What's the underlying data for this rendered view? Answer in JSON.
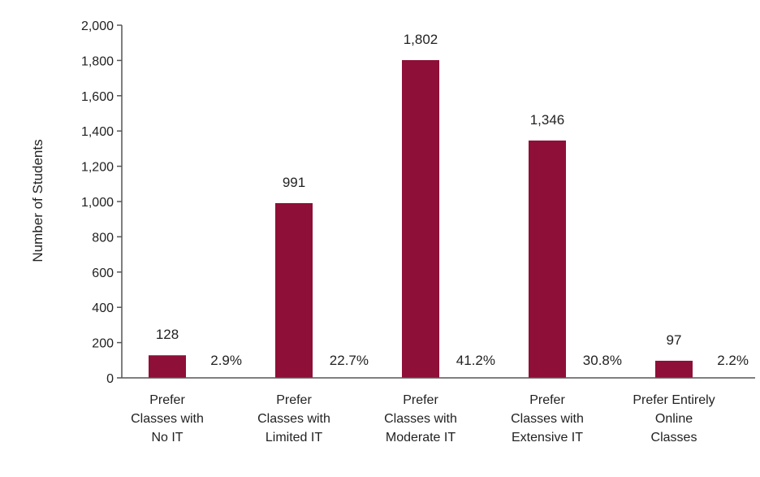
{
  "chart_data": {
    "type": "bar",
    "categories": [
      [
        "Prefer",
        "Classes with",
        "No IT"
      ],
      [
        "Prefer",
        "Classes with",
        "Limited IT"
      ],
      [
        "Prefer",
        "Classes with",
        "Moderate IT"
      ],
      [
        "Prefer",
        "Classes with",
        "Extensive IT"
      ],
      [
        "Prefer Entirely",
        "Online",
        "Classes"
      ]
    ],
    "values": [
      128,
      991,
      1802,
      1346,
      97
    ],
    "value_labels": [
      "128",
      "991",
      "1,802",
      "1,346",
      "97"
    ],
    "percent_labels": [
      "2.9%",
      "22.7%",
      "41.2%",
      "30.8%",
      "2.2%"
    ],
    "ylabel": "Number of Students",
    "xlabel": "",
    "ylim": [
      0,
      2000
    ],
    "yticks": [
      0,
      200,
      400,
      600,
      800,
      1000,
      1200,
      1400,
      1600,
      1800,
      2000
    ],
    "ytick_labels": [
      "0",
      "200",
      "400",
      "600",
      "800",
      "1,000",
      "1,200",
      "1,400",
      "1,600",
      "1,800",
      "2,000"
    ],
    "bar_color": "#8e0f37",
    "grid": false,
    "legend": "none"
  }
}
